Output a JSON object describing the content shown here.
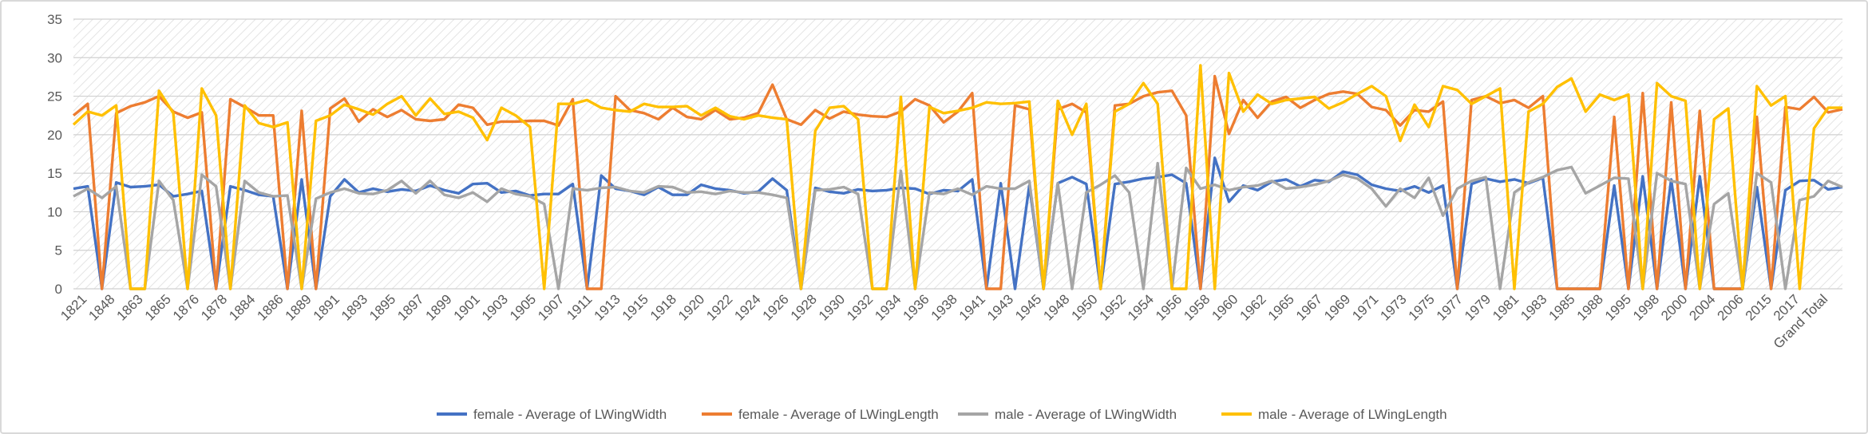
{
  "chart_data": {
    "type": "line",
    "title": "",
    "xlabel": "",
    "ylabel": "",
    "ylim": [
      0,
      35
    ],
    "yticks": [
      0,
      5,
      10,
      15,
      20,
      25,
      30,
      35
    ],
    "grid": true,
    "legend_position": "bottom",
    "x_tick_labels": [
      "1821",
      "1848",
      "1863",
      "1865",
      "1876",
      "1878",
      "1884",
      "1886",
      "1889",
      "1891",
      "1893",
      "1895",
      "1897",
      "1899",
      "1901",
      "1903",
      "1905",
      "1907",
      "1911",
      "1913",
      "1915",
      "1918",
      "1920",
      "1922",
      "1924",
      "1926",
      "1928",
      "1930",
      "1932",
      "1934",
      "1936",
      "1938",
      "1941",
      "1943",
      "1945",
      "1948",
      "1950",
      "1952",
      "1954",
      "1956",
      "1958",
      "1960",
      "1962",
      "1965",
      "1967",
      "1969",
      "1971",
      "1973",
      "1975",
      "1977",
      "1979",
      "1981",
      "1983",
      "1985",
      "1988",
      "1995",
      "1998",
      "2000",
      "2004",
      "2006",
      "2015",
      "2017",
      "Grand Total"
    ],
    "series": [
      {
        "name": "female - Average of LWingWidth",
        "color": "#4472C4",
        "values": [
          13.0,
          13.3,
          0,
          13.8,
          13.2,
          13.3,
          13.5,
          12.0,
          12.3,
          12.7,
          0,
          13.3,
          12.8,
          12.2,
          12.0,
          0,
          14.2,
          0,
          12.0,
          14.2,
          12.5,
          13.0,
          12.6,
          12.9,
          12.7,
          13.4,
          12.8,
          12.4,
          13.6,
          13.7,
          12.5,
          12.7,
          12.1,
          12.3,
          12.3,
          13.6,
          0,
          14.7,
          13.0,
          12.7,
          12.2,
          13.2,
          12.2,
          12.2,
          13.5,
          13.0,
          12.8,
          12.4,
          12.6,
          14.3,
          12.8,
          0,
          13.1,
          12.6,
          12.4,
          12.9,
          12.7,
          12.8,
          13.1,
          13.0,
          12.3,
          12.8,
          12.7,
          14.2,
          0,
          13.7,
          0,
          13.4,
          0,
          13.7,
          14.5,
          13.6,
          0,
          13.6,
          13.9,
          14.3,
          14.5,
          14.8,
          13.7,
          0,
          17.0,
          11.3,
          13.4,
          12.8,
          13.9,
          14.2,
          13.3,
          14.1,
          13.9,
          15.2,
          14.8,
          13.5,
          13.0,
          12.7,
          13.3,
          12.5,
          13.4,
          0,
          13.6,
          14.3,
          13.9,
          14.2,
          13.7,
          14.4,
          0,
          0,
          0,
          0,
          13.4,
          0,
          14.6,
          0,
          14.2,
          0,
          14.6,
          0,
          0,
          0,
          13.2,
          0,
          12.8,
          14.0,
          14.1,
          12.9,
          13.2
        ],
        "x_positions": [
          0,
          1,
          2,
          3,
          4,
          5,
          6,
          7,
          8,
          9,
          10,
          11,
          12,
          13,
          14,
          15,
          16,
          17,
          18,
          19,
          20,
          21,
          22,
          23,
          24,
          25,
          26,
          27,
          28,
          29,
          30,
          31,
          32,
          33,
          34,
          35,
          36,
          37,
          38,
          39,
          40,
          41,
          42,
          43,
          44,
          45,
          46,
          47,
          48,
          49,
          50,
          51,
          52,
          53,
          54,
          55,
          56,
          57,
          58,
          59,
          60,
          61,
          62,
          63,
          64,
          65,
          66,
          67,
          68,
          69,
          70,
          71,
          72,
          73,
          74,
          75,
          76,
          77,
          78,
          79,
          80,
          81,
          82,
          83,
          84,
          85,
          86,
          87,
          88,
          89,
          90,
          91,
          92,
          93,
          94,
          95,
          96,
          97,
          98,
          99,
          100,
          101,
          102,
          103,
          104,
          105,
          106,
          107,
          108,
          109,
          110,
          111,
          112,
          113,
          114,
          115,
          116,
          117,
          118,
          119,
          120,
          121,
          122,
          123,
          124
        ]
      },
      {
        "name": "female - Average of LWingLength",
        "color": "#ED7D31",
        "values": [
          22.5,
          24.0,
          0,
          22.8,
          23.7,
          24.2,
          25.0,
          23.0,
          22.2,
          22.9,
          0,
          24.6,
          23.6,
          22.5,
          22.5,
          0,
          23.1,
          0,
          23.4,
          24.7,
          21.7,
          23.3,
          22.3,
          23.2,
          22.0,
          21.8,
          22.0,
          23.9,
          23.5,
          21.3,
          21.7,
          21.7,
          21.8,
          21.8,
          21.2,
          24.6,
          0,
          0,
          25.0,
          23.2,
          22.8,
          22.0,
          23.5,
          22.3,
          22.0,
          23.2,
          22.0,
          22.2,
          22.8,
          26.5,
          22.0,
          21.3,
          23.2,
          22.1,
          23.0,
          22.6,
          22.4,
          22.3,
          23.0,
          24.6,
          23.8,
          21.6,
          23.0,
          25.4,
          0,
          0,
          23.8,
          23.3,
          0,
          23.3,
          24.0,
          22.9,
          0,
          23.8,
          24.0,
          25.0,
          25.5,
          25.7,
          22.5,
          0,
          27.6,
          20.1,
          24.5,
          22.2,
          24.3,
          24.9,
          23.5,
          24.5,
          25.3,
          25.6,
          25.3,
          23.6,
          23.2,
          21.2,
          23.2,
          23.0,
          24.3,
          0,
          24.5,
          25.0,
          24.1,
          24.5,
          23.5,
          25.0,
          0,
          0,
          0,
          0,
          22.3,
          0,
          25.4,
          0,
          24.2,
          0,
          23.1,
          0,
          0,
          0,
          22.3,
          0,
          23.6,
          23.3,
          24.9,
          22.9,
          23.3
        ],
        "x_positions": [
          0,
          1,
          2,
          3,
          4,
          5,
          6,
          7,
          8,
          9,
          10,
          11,
          12,
          13,
          14,
          15,
          16,
          17,
          18,
          19,
          20,
          21,
          22,
          23,
          24,
          25,
          26,
          27,
          28,
          29,
          30,
          31,
          32,
          33,
          34,
          35,
          36,
          37,
          38,
          39,
          40,
          41,
          42,
          43,
          44,
          45,
          46,
          47,
          48,
          49,
          50,
          51,
          52,
          53,
          54,
          55,
          56,
          57,
          58,
          59,
          60,
          61,
          62,
          63,
          64,
          65,
          66,
          67,
          68,
          69,
          70,
          71,
          72,
          73,
          74,
          75,
          76,
          77,
          78,
          79,
          80,
          81,
          82,
          83,
          84,
          85,
          86,
          87,
          88,
          89,
          90,
          91,
          92,
          93,
          94,
          95,
          96,
          97,
          98,
          99,
          100,
          101,
          102,
          103,
          104,
          105,
          106,
          107,
          108,
          109,
          110,
          111,
          112,
          113,
          114,
          115,
          116,
          117,
          118,
          119,
          120,
          121,
          122,
          123,
          124
        ]
      },
      {
        "name": "male - Average of LWingWidth",
        "color": "#A5A5A5",
        "values": [
          12.0,
          13.0,
          11.8,
          13.3,
          0,
          0,
          14.0,
          11.5,
          0,
          14.8,
          13.3,
          0,
          14.0,
          12.5,
          12.0,
          12.1,
          0,
          11.7,
          12.5,
          13.0,
          12.4,
          12.3,
          12.8,
          14.0,
          12.4,
          14.0,
          12.2,
          11.8,
          12.5,
          11.3,
          13.0,
          12.3,
          12.0,
          11.0,
          0,
          13.0,
          12.8,
          13.1,
          13.2,
          12.7,
          12.5,
          13.3,
          13.2,
          12.5,
          12.6,
          12.3,
          12.7,
          12.5,
          12.5,
          12.2,
          11.8,
          0,
          12.8,
          12.9,
          13.2,
          12.3,
          0,
          0,
          15.3,
          0,
          12.5,
          12.3,
          13.0,
          12.2,
          13.3,
          13.0,
          13.0,
          14.0,
          0,
          13.7,
          0,
          12.5,
          13.5,
          14.7,
          12.5,
          0,
          16.3,
          0,
          15.7,
          13.0,
          13.5,
          12.8,
          13.2,
          13.4,
          14.0,
          13.0,
          13.2,
          13.5,
          14.0,
          14.8,
          14.3,
          13.0,
          10.7,
          13.0,
          11.8,
          14.4,
          9.5,
          13.0,
          14.0,
          14.5,
          0,
          12.5,
          13.8,
          14.5,
          15.4,
          15.8,
          12.4,
          13.4,
          14.4,
          14.3,
          0,
          15.0,
          14.0,
          13.6,
          0,
          11.0,
          12.4,
          0,
          15.0,
          13.8,
          0,
          11.5,
          12.0,
          14.0,
          13.2
        ],
        "x_positions": [
          0,
          1,
          2,
          3,
          4,
          5,
          6,
          7,
          8,
          9,
          10,
          11,
          12,
          13,
          14,
          15,
          16,
          17,
          18,
          19,
          20,
          21,
          22,
          23,
          24,
          25,
          26,
          27,
          28,
          29,
          30,
          31,
          32,
          33,
          34,
          35,
          36,
          37,
          38,
          39,
          40,
          41,
          42,
          43,
          44,
          45,
          46,
          47,
          48,
          49,
          50,
          51,
          52,
          53,
          54,
          55,
          56,
          57,
          58,
          59,
          60,
          61,
          62,
          63,
          64,
          65,
          66,
          67,
          68,
          69,
          70,
          71,
          72,
          73,
          74,
          75,
          76,
          77,
          78,
          79,
          80,
          81,
          82,
          83,
          84,
          85,
          86,
          87,
          88,
          89,
          90,
          91,
          92,
          93,
          94,
          95,
          96,
          97,
          98,
          99,
          100,
          101,
          102,
          103,
          104,
          105,
          106,
          107,
          108,
          109,
          110,
          111,
          112,
          113,
          114,
          115,
          116,
          117,
          118,
          119,
          120,
          121,
          122,
          123,
          124
        ]
      },
      {
        "name": "male - Average of LWingLength",
        "color": "#FFC000",
        "values": [
          21.3,
          23.0,
          22.5,
          23.8,
          0,
          0,
          25.7,
          22.8,
          0,
          26.0,
          22.5,
          0,
          23.8,
          21.5,
          21.0,
          21.6,
          0,
          21.8,
          22.5,
          23.9,
          23.3,
          22.6,
          24.0,
          25.0,
          22.5,
          24.7,
          22.7,
          23.0,
          22.2,
          19.3,
          23.5,
          22.5,
          21.0,
          0,
          24.0,
          24.0,
          24.5,
          23.5,
          23.2,
          23.0,
          24.0,
          23.6,
          23.6,
          23.7,
          22.5,
          23.5,
          22.4,
          22.0,
          22.5,
          22.2,
          22.0,
          0,
          20.5,
          23.5,
          23.7,
          22.0,
          0,
          0,
          24.9,
          0,
          23.6,
          22.8,
          23.1,
          23.5,
          24.2,
          24.0,
          24.1,
          24.3,
          0,
          24.4,
          20.0,
          24.0,
          0,
          23.0,
          24.0,
          26.7,
          24.0,
          0,
          0,
          29.0,
          0,
          28.0,
          23.0,
          25.2,
          24.0,
          24.5,
          24.7,
          24.9,
          23.4,
          24.2,
          25.3,
          26.3,
          25.0,
          19.2,
          23.9,
          21.0,
          26.3,
          25.8,
          24.0,
          25.0,
          26.0,
          0,
          23.0,
          24.0,
          26.2,
          27.3,
          23.0,
          25.2,
          24.5,
          25.2,
          0,
          26.7,
          25.0,
          24.4,
          0,
          22.0,
          23.4,
          0,
          26.3,
          23.8,
          25.0,
          0,
          20.8,
          23.5,
          23.5
        ],
        "x_positions": [
          0,
          1,
          2,
          3,
          4,
          5,
          6,
          7,
          8,
          9,
          10,
          11,
          12,
          13,
          14,
          15,
          16,
          17,
          18,
          19,
          20,
          21,
          22,
          23,
          24,
          25,
          26,
          27,
          28,
          29,
          30,
          31,
          32,
          33,
          34,
          35,
          36,
          37,
          38,
          39,
          40,
          41,
          42,
          43,
          44,
          45,
          46,
          47,
          48,
          49,
          50,
          51,
          52,
          53,
          54,
          55,
          56,
          57,
          58,
          59,
          60,
          61,
          62,
          63,
          64,
          65,
          66,
          67,
          68,
          69,
          70,
          71,
          72,
          73,
          74,
          75,
          76,
          77,
          78,
          79,
          80,
          81,
          82,
          83,
          84,
          85,
          86,
          87,
          88,
          89,
          90,
          91,
          92,
          93,
          94,
          95,
          96,
          97,
          98,
          99,
          100,
          101,
          102,
          103,
          104,
          105,
          106,
          107,
          108,
          109,
          110,
          111,
          112,
          113,
          114,
          115,
          116,
          117,
          118,
          119,
          120,
          121,
          122,
          123,
          124
        ]
      }
    ]
  }
}
